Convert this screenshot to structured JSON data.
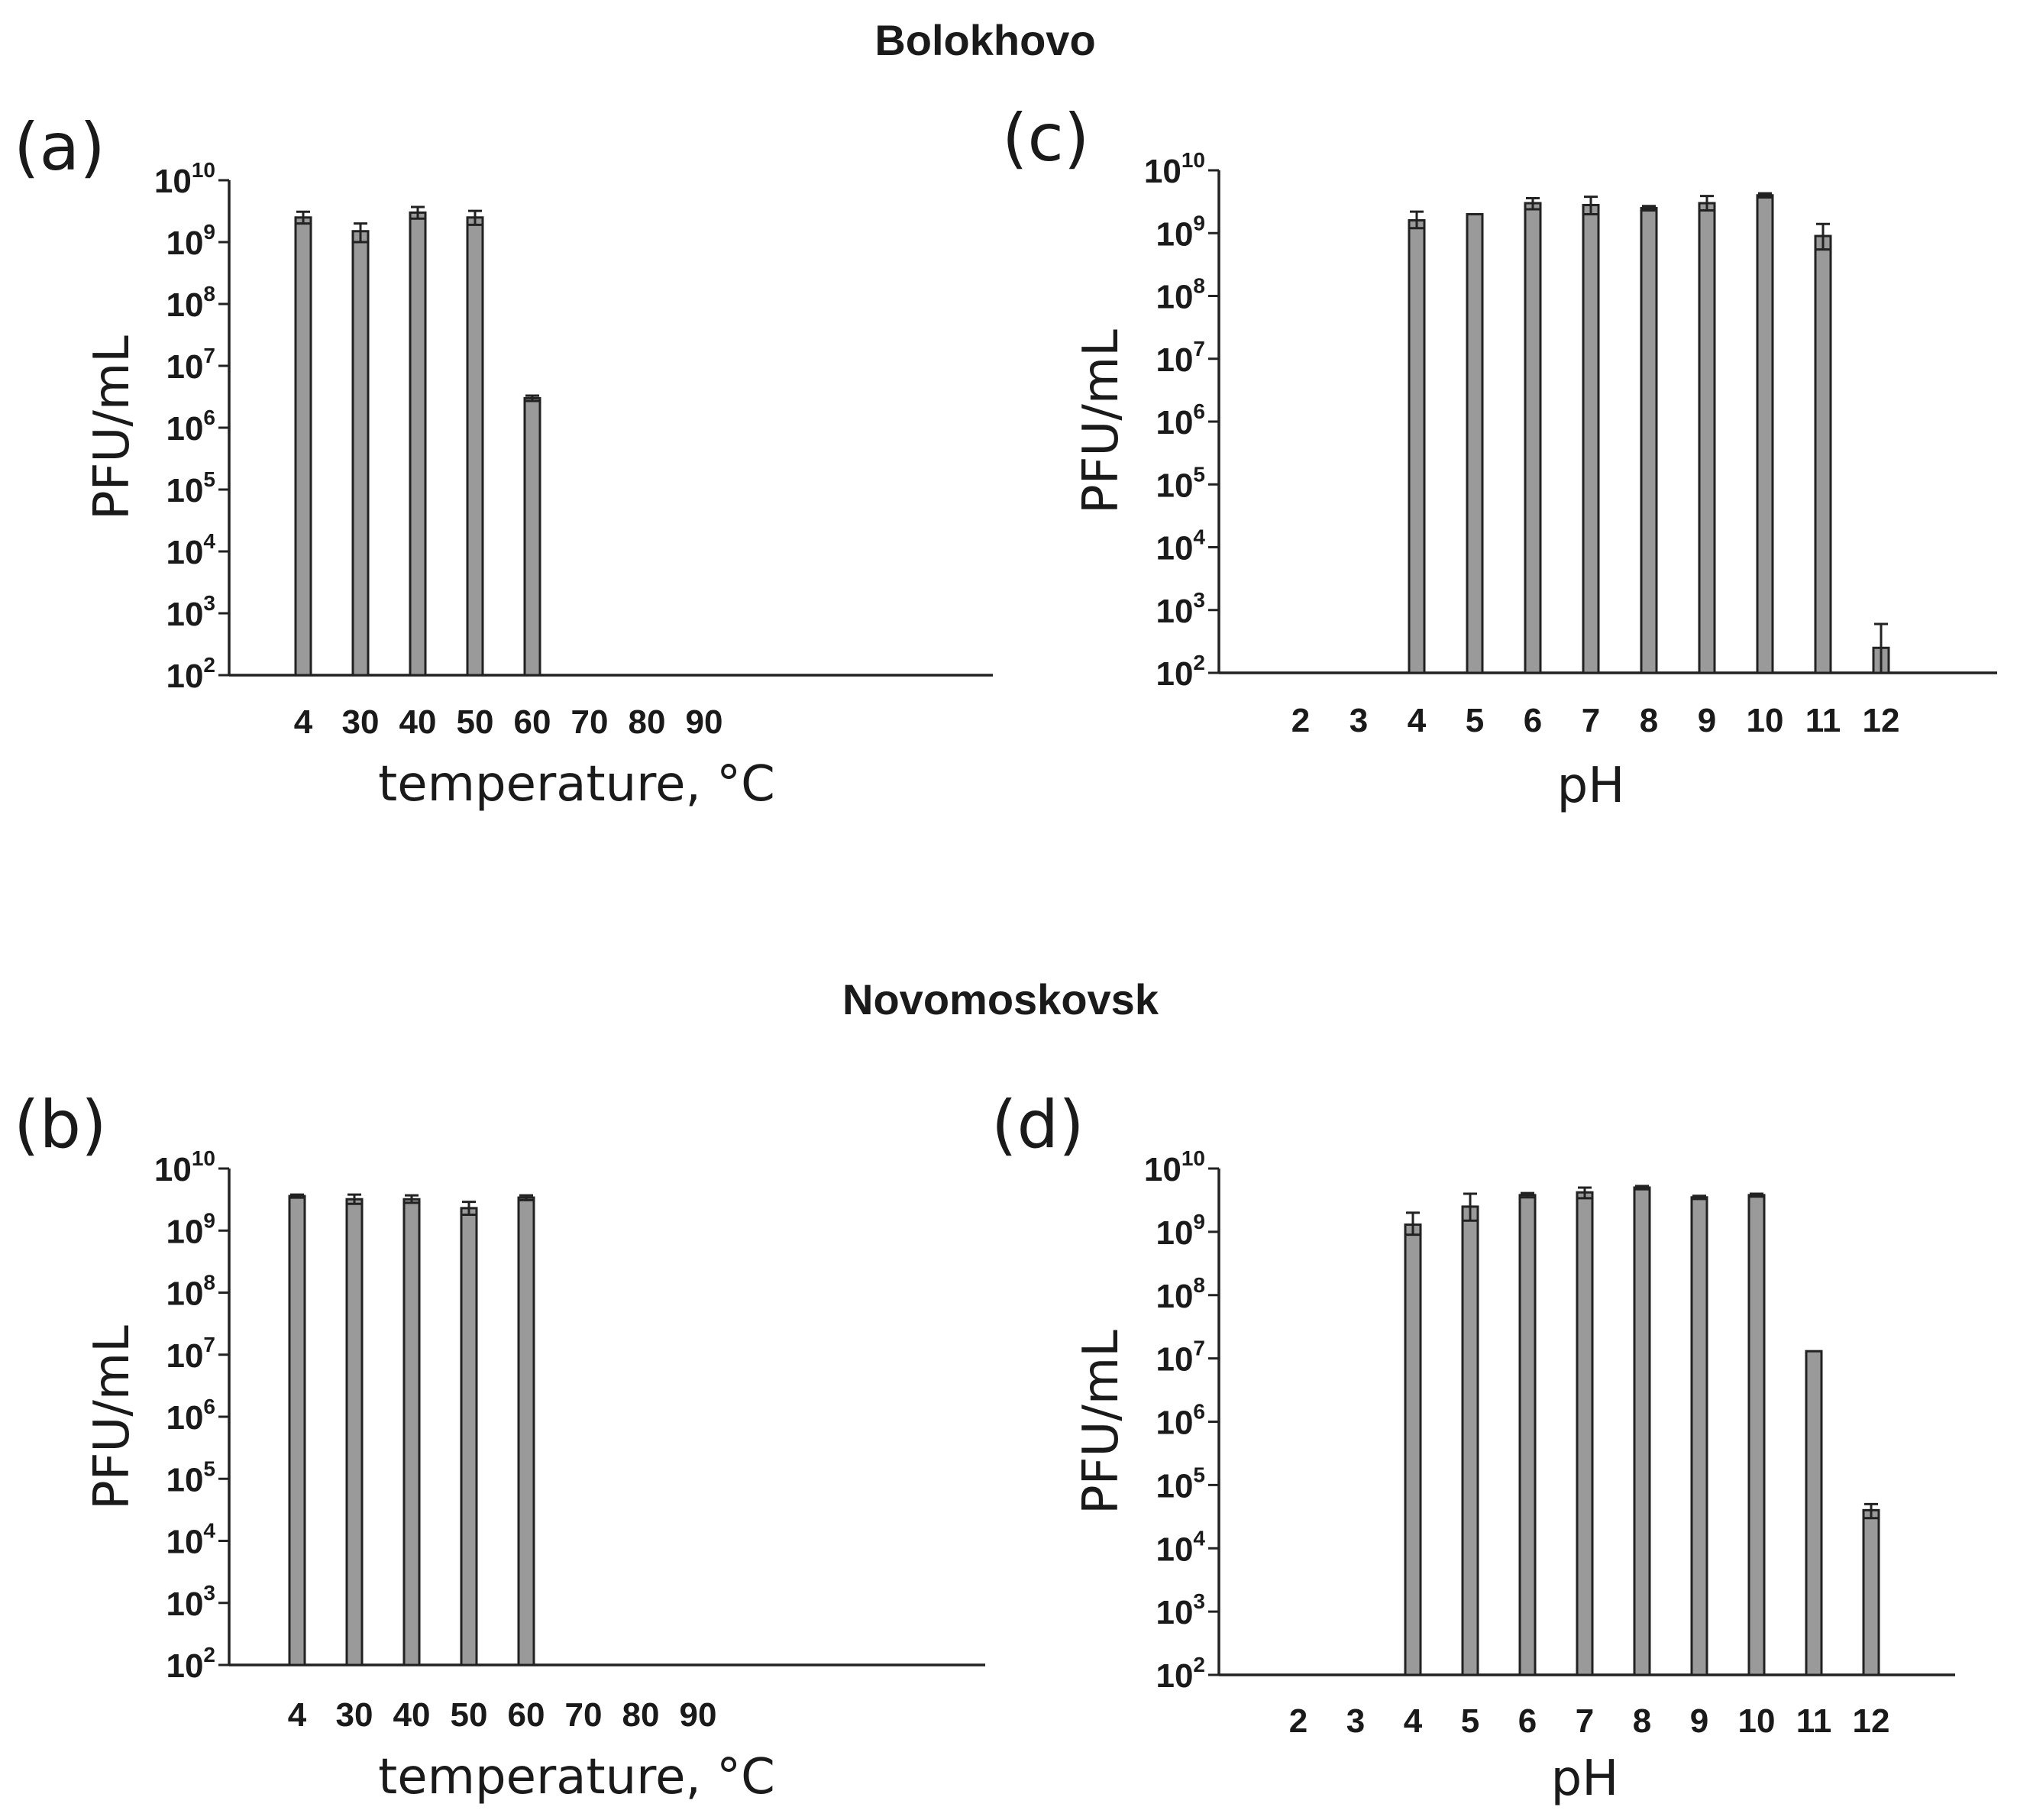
{
  "sections": [
    {
      "title": "Bolokhovo"
    },
    {
      "title": "Novomoskovsk"
    }
  ],
  "colors": {
    "bar": "#9a9a9a",
    "axis": "#222222",
    "text": "#1a1a1a"
  },
  "chart_data": [
    {
      "panel": "(a)",
      "section": "Bolokhovo",
      "type": "bar",
      "scale": "log10",
      "title": "",
      "xlabel": "temperature, °C",
      "ylabel": "PFU/mL",
      "ylim": [
        100,
        10000000000
      ],
      "yticks_exp": [
        2,
        3,
        4,
        5,
        6,
        7,
        8,
        9,
        10
      ],
      "categories": [
        "4",
        "30",
        "40",
        "50",
        "60",
        "70",
        "80",
        "90"
      ],
      "values": [
        2500000000,
        1500000000,
        3000000000,
        2500000000,
        3000000,
        null,
        null,
        null
      ],
      "err_high": [
        3100000000,
        2000000000,
        3700000000,
        3200000000,
        3300000,
        null,
        null,
        null
      ],
      "err_low": [
        2000000000,
        1000000000,
        2400000000,
        1900000000,
        2700000,
        null,
        null,
        null
      ]
    },
    {
      "panel": "(c)",
      "section": "Bolokhovo",
      "type": "bar",
      "scale": "log10",
      "title": "",
      "xlabel": "pH",
      "ylabel": "PFU/mL",
      "ylim": [
        100,
        10000000000
      ],
      "yticks_exp": [
        2,
        3,
        4,
        5,
        6,
        7,
        8,
        9,
        10
      ],
      "categories": [
        "2",
        "3",
        "4",
        "5",
        "6",
        "7",
        "8",
        "9",
        "10",
        "11",
        "12"
      ],
      "values": [
        null,
        null,
        1600000000,
        2000000000,
        3000000000,
        2800000000,
        2500000000,
        3000000000,
        4000000000,
        900000000,
        250
      ],
      "err_high": [
        null,
        null,
        2200000000,
        null,
        3600000000,
        3800000000,
        2700000000,
        3900000000,
        4300000000,
        1400000000,
        600
      ],
      "err_low": [
        null,
        null,
        1200000000,
        null,
        2400000000,
        2000000000,
        2300000000,
        2300000000,
        3700000000,
        550000000,
        100
      ]
    },
    {
      "panel": "(b)",
      "section": "Novomoskovsk",
      "type": "bar",
      "scale": "log10",
      "title": "",
      "xlabel": "temperature, °C",
      "ylabel": "PFU/mL",
      "ylim": [
        100,
        10000000000
      ],
      "yticks_exp": [
        2,
        3,
        4,
        5,
        6,
        7,
        8,
        9,
        10
      ],
      "categories": [
        "4",
        "30",
        "40",
        "50",
        "60",
        "70",
        "80",
        "90"
      ],
      "values": [
        3600000000,
        3200000000,
        3200000000,
        2300000000,
        3400000000,
        null,
        null,
        null
      ],
      "err_high": [
        3800000000,
        3800000000,
        3700000000,
        2900000000,
        3700000000,
        null,
        null,
        null
      ],
      "err_low": [
        3400000000,
        2700000000,
        2800000000,
        1800000000,
        3100000000,
        null,
        null,
        null
      ]
    },
    {
      "panel": "(d)",
      "section": "Novomoskovsk",
      "type": "bar",
      "scale": "log10",
      "title": "",
      "xlabel": "pH",
      "ylabel": "PFU/mL",
      "ylim": [
        100,
        10000000000
      ],
      "yticks_exp": [
        2,
        3,
        4,
        5,
        6,
        7,
        8,
        9,
        10
      ],
      "categories": [
        "2",
        "3",
        "4",
        "5",
        "6",
        "7",
        "8",
        "9",
        "10",
        "11",
        "12"
      ],
      "values": [
        null,
        null,
        1300000000,
        2500000000,
        3800000000,
        4200000000,
        5000000000,
        3500000000,
        3800000000,
        13000000,
        40000
      ],
      "err_high": [
        null,
        null,
        2000000000,
        4000000000,
        4100000000,
        5000000000,
        5300000000,
        3700000000,
        4000000000,
        null,
        50000
      ],
      "err_low": [
        null,
        null,
        900000000,
        1500000000,
        3500000000,
        3400000000,
        4700000000,
        3300000000,
        3600000000,
        null,
        30000
      ]
    }
  ]
}
